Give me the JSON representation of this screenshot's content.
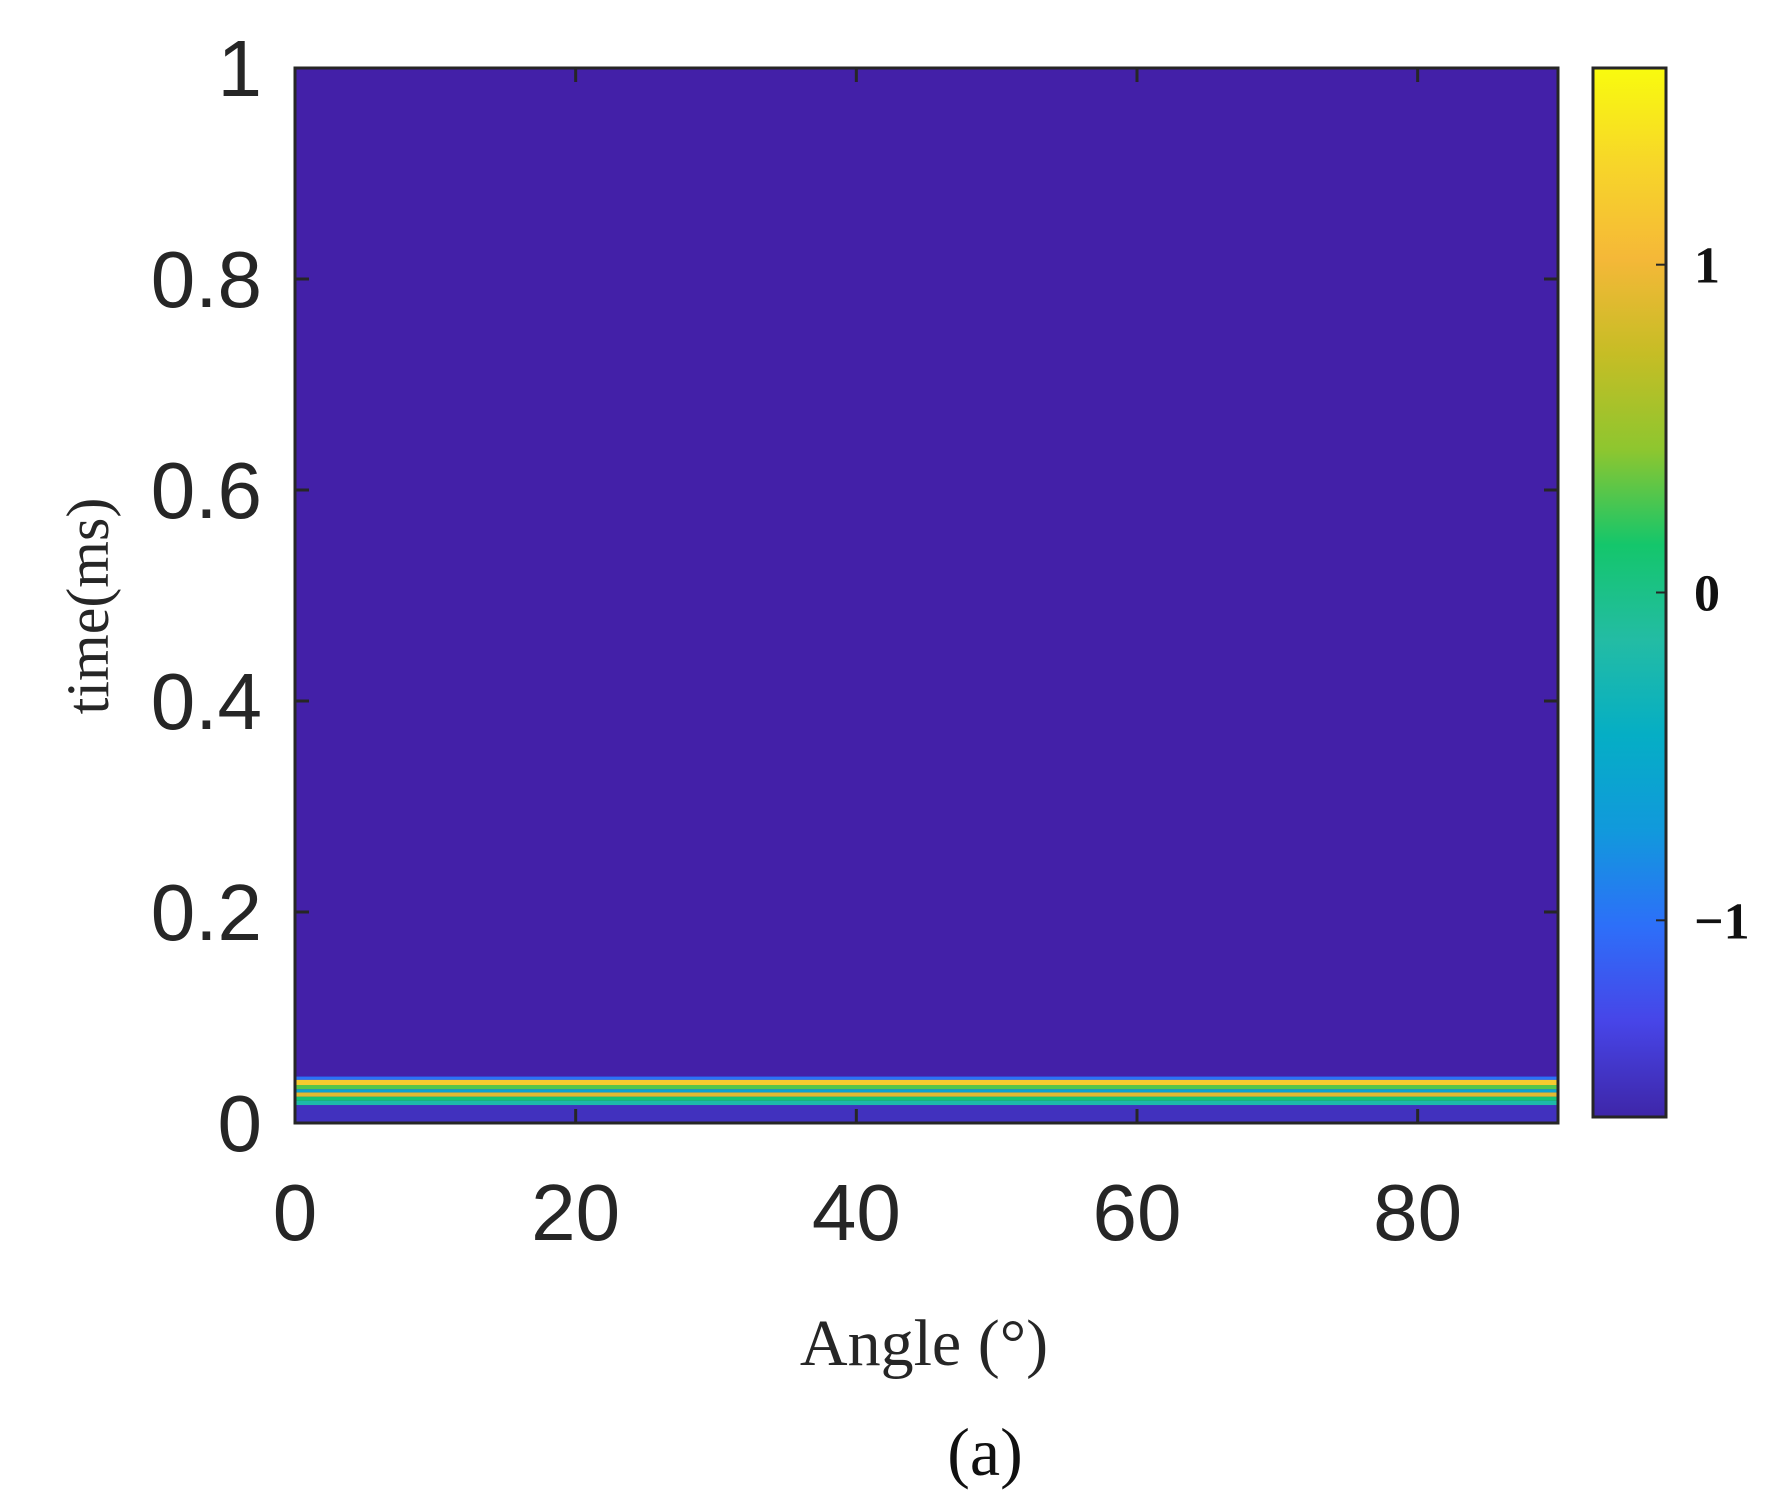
{
  "chart_data": {
    "type": "heatmap",
    "title": "",
    "panel_label": "(a)",
    "xlabel": "Angle (°)",
    "ylabel": "time(ms)",
    "xlim": [
      0,
      90
    ],
    "ylim": [
      0,
      1
    ],
    "xticks": [
      "0",
      "20",
      "40",
      "60",
      "80"
    ],
    "xtick_values": [
      0,
      20,
      40,
      60,
      80
    ],
    "yticks": [
      "0",
      "0.2",
      "0.4",
      "0.6",
      "0.8",
      "1"
    ],
    "ytick_values": [
      0,
      0.2,
      0.4,
      0.6,
      0.8,
      1
    ],
    "background_value": -1.5,
    "bands": [
      {
        "t0": 0.0,
        "t1": 0.017,
        "value": -1.5
      },
      {
        "t0": 0.017,
        "t1": 0.021,
        "value": -0.2
      },
      {
        "t0": 0.021,
        "t1": 0.025,
        "value": 0.1
      },
      {
        "t0": 0.025,
        "t1": 0.029,
        "value": 0.9
      },
      {
        "t0": 0.029,
        "t1": 0.032,
        "value": -0.6
      },
      {
        "t0": 0.032,
        "t1": 0.036,
        "value": 0.3
      },
      {
        "t0": 0.036,
        "t1": 0.041,
        "value": 1.2
      },
      {
        "t0": 0.041,
        "t1": 0.044,
        "value": -1.0
      }
    ],
    "colorbar": {
      "range": [
        -1.6,
        1.6
      ],
      "ticks": [
        "1",
        "0",
        "−1"
      ],
      "tick_values": [
        1,
        0,
        -1
      ],
      "colormap": "parula",
      "colors": [
        "#3e26a8",
        "#4745e8",
        "#2d6ff9",
        "#1199dc",
        "#05aec5",
        "#23bca4",
        "#14c66b",
        "#8ec62f",
        "#c6bd25",
        "#f5b838",
        "#f7d629",
        "#f9fb0e"
      ]
    },
    "grid": false,
    "legend": "none"
  }
}
